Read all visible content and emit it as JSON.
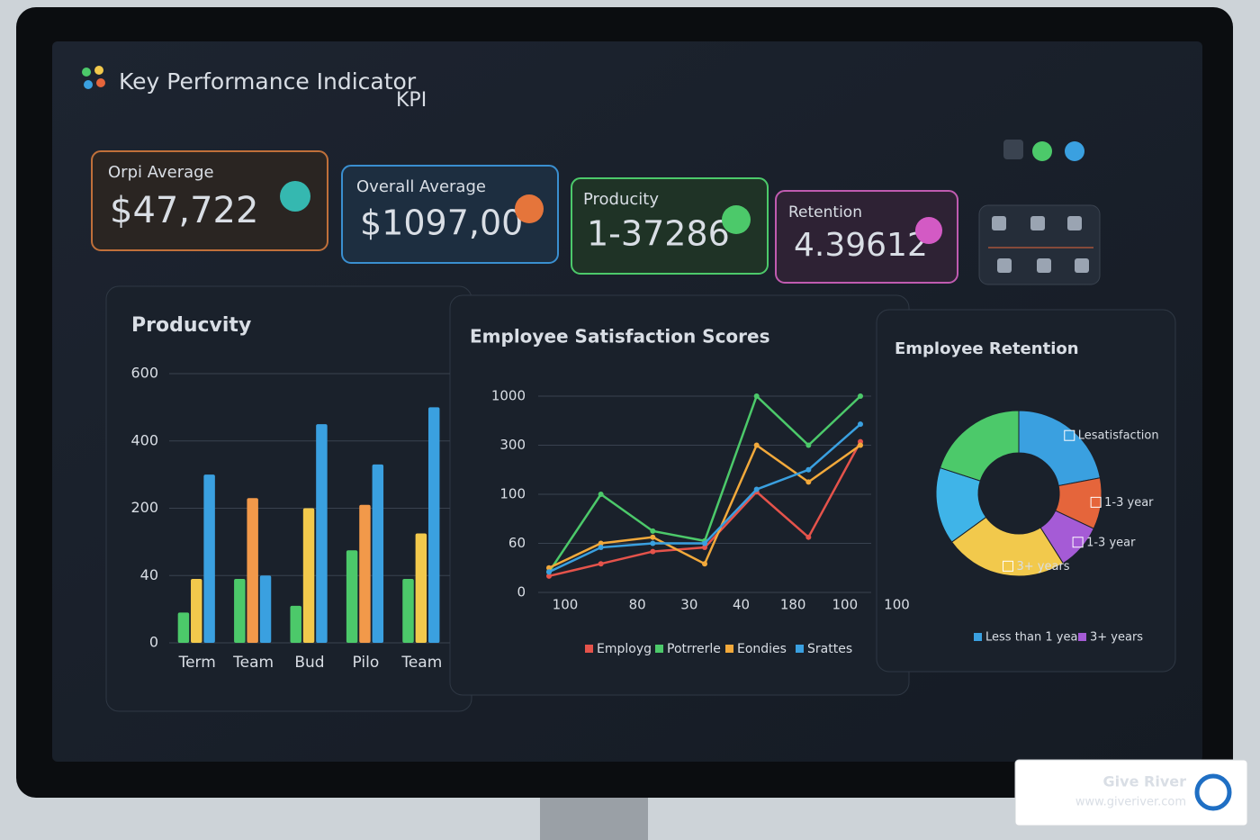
{
  "header": {
    "title": "Key Performance Indicator",
    "tag": "KPI"
  },
  "kpis": [
    {
      "label": "Orpi Average",
      "value": "$47,722"
    },
    {
      "label": "Overall Average",
      "value": "$1097,00"
    },
    {
      "label": "Producity",
      "value": "1-37286"
    },
    {
      "label": "Retention",
      "value": "4.39612"
    }
  ],
  "chart_data": [
    {
      "type": "bar",
      "title": "Producvity",
      "categories": [
        "Term",
        "Team",
        "Bud",
        "Pilo",
        "Team"
      ],
      "ylim": [
        0,
        600
      ],
      "yticks": [
        0,
        40,
        200,
        400,
        600
      ],
      "grid": true,
      "series": [
        {
          "color": "#4cc96a",
          "values": [
            18,
            38,
            22,
            100,
            38
          ]
        },
        {
          "colors": [
            "#f2c94c",
            "#f2994a",
            "#f2c94c",
            "#f2994a",
            "#f2c94c"
          ],
          "values": [
            38,
            230,
            200,
            210,
            140
          ]
        },
        {
          "color": "#3aa0e0",
          "values": [
            300,
            40,
            450,
            330,
            500
          ]
        }
      ]
    },
    {
      "type": "line",
      "title": "Employee Satisfaction Scores",
      "categories": [
        "100",
        "80",
        "30",
        "40",
        "180",
        "100",
        "100"
      ],
      "ylim": [
        0,
        1000
      ],
      "yticks": [
        0,
        60,
        100,
        300,
        1000
      ],
      "grid": true,
      "series": [
        {
          "name": "Employg",
          "color": "#e5534b",
          "values": [
            20,
            35,
            50,
            55,
            110,
            65,
            350
          ]
        },
        {
          "name": "Potrrerle",
          "color": "#4cc96a",
          "values": [
            25,
            100,
            70,
            62,
            1000,
            300,
            1000
          ]
        },
        {
          "name": "Eondies",
          "color": "#f2a93b",
          "values": [
            30,
            60,
            65,
            35,
            300,
            150,
            300
          ]
        },
        {
          "name": "Srattes",
          "color": "#3aa0e0",
          "values": [
            25,
            55,
            60,
            60,
            120,
            200,
            600
          ]
        }
      ]
    },
    {
      "type": "pie",
      "title": "Employee Retention",
      "categories": [
        "Lesatisfaction",
        "1-3 year",
        "1-3 year",
        "3+ years",
        null,
        null
      ],
      "values": [
        22,
        10,
        9,
        24,
        15,
        20
      ],
      "colors": [
        "#3aa0e0",
        "#e5653b",
        "#a55bd6",
        "#f2c94c",
        "#3fb4e8",
        "#4cc96a"
      ],
      "legend": [
        {
          "name": "Less than 1 year",
          "color": "#3aa0e0"
        },
        {
          "name": "3+ years",
          "color": "#a55bd6"
        }
      ]
    }
  ],
  "footer": {
    "brand": "Give River",
    "url": "www.giveriver.com"
  }
}
